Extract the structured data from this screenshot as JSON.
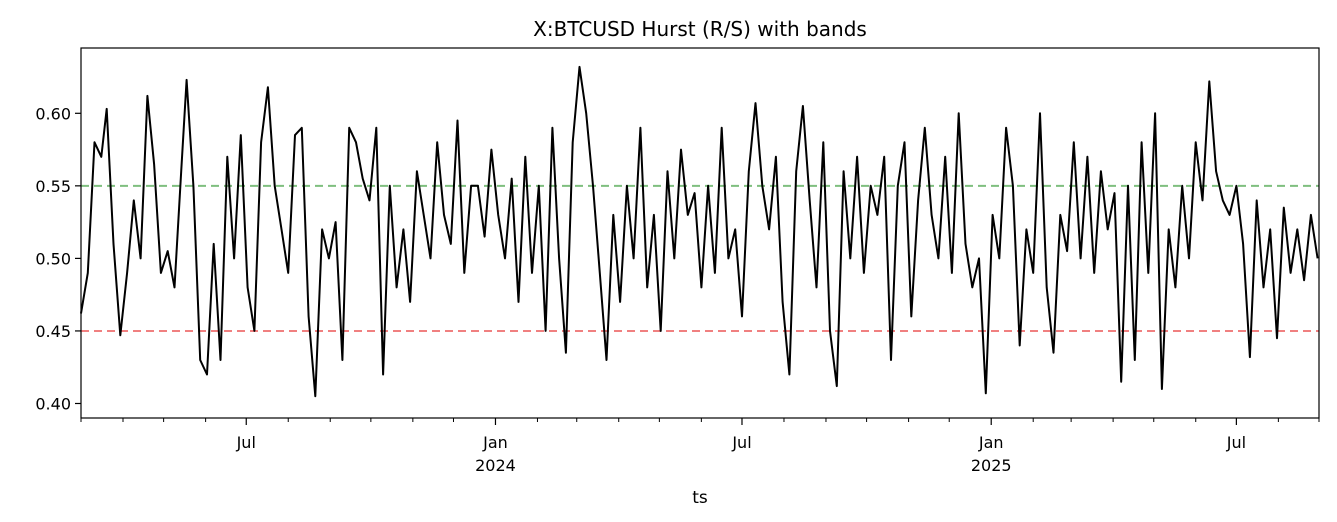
{
  "chart_data": {
    "type": "line",
    "title": "X:BTCUSD Hurst (R/S) with bands",
    "xlabel": "ts",
    "ylabel": "",
    "ylim": [
      0.39,
      0.645
    ],
    "xlim": [
      "2023-03-01",
      "2025-08-31"
    ],
    "grid": false,
    "legend": "none",
    "y_ticks": [
      "0.40",
      "0.45",
      "0.50",
      "0.55",
      "0.60"
    ],
    "x_major_ticks": [
      {
        "date": "2023-07-01",
        "label": "Jul",
        "label2": ""
      },
      {
        "date": "2024-01-01",
        "label": "Jan",
        "label2": "2024"
      },
      {
        "date": "2024-07-01",
        "label": "Jul",
        "label2": ""
      },
      {
        "date": "2025-01-01",
        "label": "Jan",
        "label2": "2025"
      },
      {
        "date": "2025-07-01",
        "label": "Jul",
        "label2": ""
      }
    ],
    "bands": [
      {
        "value": 0.55,
        "color": "#7fbf7f",
        "style": "dashed"
      },
      {
        "value": 0.45,
        "color": "#f08080",
        "style": "dashed"
      }
    ],
    "series": [
      {
        "color": "#000000",
        "points": [
          [
            "2023-03-01",
            0.462
          ],
          [
            "2023-03-06",
            0.49
          ],
          [
            "2023-03-11",
            0.58
          ],
          [
            "2023-03-16",
            0.57
          ],
          [
            "2023-03-20",
            0.603
          ],
          [
            "2023-03-25",
            0.51
          ],
          [
            "2023-03-30",
            0.447
          ],
          [
            "2023-04-04",
            0.49
          ],
          [
            "2023-04-09",
            0.54
          ],
          [
            "2023-04-14",
            0.5
          ],
          [
            "2023-04-19",
            0.612
          ],
          [
            "2023-04-24",
            0.565
          ],
          [
            "2023-04-29",
            0.49
          ],
          [
            "2023-05-04",
            0.505
          ],
          [
            "2023-05-09",
            0.48
          ],
          [
            "2023-05-14",
            0.56
          ],
          [
            "2023-05-18",
            0.623
          ],
          [
            "2023-05-23",
            0.55
          ],
          [
            "2023-05-28",
            0.43
          ],
          [
            "2023-06-02",
            0.42
          ],
          [
            "2023-06-07",
            0.51
          ],
          [
            "2023-06-12",
            0.43
          ],
          [
            "2023-06-17",
            0.57
          ],
          [
            "2023-06-22",
            0.5
          ],
          [
            "2023-06-27",
            0.585
          ],
          [
            "2023-07-02",
            0.48
          ],
          [
            "2023-07-07",
            0.45
          ],
          [
            "2023-07-12",
            0.58
          ],
          [
            "2023-07-17",
            0.618
          ],
          [
            "2023-07-22",
            0.55
          ],
          [
            "2023-07-27",
            0.52
          ],
          [
            "2023-08-01",
            0.49
          ],
          [
            "2023-08-06",
            0.585
          ],
          [
            "2023-08-11",
            0.59
          ],
          [
            "2023-08-16",
            0.46
          ],
          [
            "2023-08-21",
            0.405
          ],
          [
            "2023-08-26",
            0.52
          ],
          [
            "2023-08-31",
            0.5
          ],
          [
            "2023-09-05",
            0.525
          ],
          [
            "2023-09-10",
            0.43
          ],
          [
            "2023-09-15",
            0.59
          ],
          [
            "2023-09-20",
            0.58
          ],
          [
            "2023-09-25",
            0.555
          ],
          [
            "2023-09-30",
            0.54
          ],
          [
            "2023-10-05",
            0.59
          ],
          [
            "2023-10-10",
            0.42
          ],
          [
            "2023-10-15",
            0.55
          ],
          [
            "2023-10-20",
            0.48
          ],
          [
            "2023-10-25",
            0.52
          ],
          [
            "2023-10-30",
            0.47
          ],
          [
            "2023-11-04",
            0.56
          ],
          [
            "2023-11-09",
            0.53
          ],
          [
            "2023-11-14",
            0.5
          ],
          [
            "2023-11-19",
            0.58
          ],
          [
            "2023-11-24",
            0.53
          ],
          [
            "2023-11-29",
            0.51
          ],
          [
            "2023-12-04",
            0.595
          ],
          [
            "2023-12-09",
            0.49
          ],
          [
            "2023-12-14",
            0.55
          ],
          [
            "2023-12-19",
            0.55
          ],
          [
            "2023-12-24",
            0.515
          ],
          [
            "2023-12-29",
            0.575
          ],
          [
            "2024-01-03",
            0.53
          ],
          [
            "2024-01-08",
            0.5
          ],
          [
            "2024-01-13",
            0.555
          ],
          [
            "2024-01-18",
            0.47
          ],
          [
            "2024-01-23",
            0.57
          ],
          [
            "2024-01-28",
            0.49
          ],
          [
            "2024-02-02",
            0.55
          ],
          [
            "2024-02-07",
            0.45
          ],
          [
            "2024-02-12",
            0.59
          ],
          [
            "2024-02-17",
            0.5
          ],
          [
            "2024-02-22",
            0.435
          ],
          [
            "2024-02-27",
            0.58
          ],
          [
            "2024-03-03",
            0.632
          ],
          [
            "2024-03-08",
            0.6
          ],
          [
            "2024-03-13",
            0.55
          ],
          [
            "2024-03-18",
            0.49
          ],
          [
            "2024-03-23",
            0.43
          ],
          [
            "2024-03-28",
            0.53
          ],
          [
            "2024-04-02",
            0.47
          ],
          [
            "2024-04-07",
            0.55
          ],
          [
            "2024-04-12",
            0.5
          ],
          [
            "2024-04-17",
            0.59
          ],
          [
            "2024-04-22",
            0.48
          ],
          [
            "2024-04-27",
            0.53
          ],
          [
            "2024-05-02",
            0.45
          ],
          [
            "2024-05-07",
            0.56
          ],
          [
            "2024-05-12",
            0.5
          ],
          [
            "2024-05-17",
            0.575
          ],
          [
            "2024-05-22",
            0.53
          ],
          [
            "2024-05-27",
            0.545
          ],
          [
            "2024-06-01",
            0.48
          ],
          [
            "2024-06-06",
            0.55
          ],
          [
            "2024-06-11",
            0.49
          ],
          [
            "2024-06-16",
            0.59
          ],
          [
            "2024-06-21",
            0.5
          ],
          [
            "2024-06-26",
            0.52
          ],
          [
            "2024-07-01",
            0.46
          ],
          [
            "2024-07-06",
            0.56
          ],
          [
            "2024-07-11",
            0.607
          ],
          [
            "2024-07-16",
            0.55
          ],
          [
            "2024-07-21",
            0.52
          ],
          [
            "2024-07-26",
            0.57
          ],
          [
            "2024-07-31",
            0.47
          ],
          [
            "2024-08-05",
            0.42
          ],
          [
            "2024-08-10",
            0.56
          ],
          [
            "2024-08-15",
            0.605
          ],
          [
            "2024-08-20",
            0.54
          ],
          [
            "2024-08-25",
            0.48
          ],
          [
            "2024-08-30",
            0.58
          ],
          [
            "2024-09-04",
            0.45
          ],
          [
            "2024-09-09",
            0.412
          ],
          [
            "2024-09-14",
            0.56
          ],
          [
            "2024-09-19",
            0.5
          ],
          [
            "2024-09-24",
            0.57
          ],
          [
            "2024-09-29",
            0.49
          ],
          [
            "2024-10-04",
            0.55
          ],
          [
            "2024-10-09",
            0.53
          ],
          [
            "2024-10-14",
            0.57
          ],
          [
            "2024-10-19",
            0.43
          ],
          [
            "2024-10-24",
            0.55
          ],
          [
            "2024-10-29",
            0.58
          ],
          [
            "2024-11-03",
            0.46
          ],
          [
            "2024-11-08",
            0.54
          ],
          [
            "2024-11-13",
            0.59
          ],
          [
            "2024-11-18",
            0.53
          ],
          [
            "2024-11-23",
            0.5
          ],
          [
            "2024-11-28",
            0.57
          ],
          [
            "2024-12-03",
            0.49
          ],
          [
            "2024-12-08",
            0.6
          ],
          [
            "2024-12-13",
            0.51
          ],
          [
            "2024-12-18",
            0.48
          ],
          [
            "2024-12-23",
            0.5
          ],
          [
            "2024-12-28",
            0.407
          ],
          [
            "2025-01-02",
            0.53
          ],
          [
            "2025-01-07",
            0.5
          ],
          [
            "2025-01-12",
            0.59
          ],
          [
            "2025-01-17",
            0.55
          ],
          [
            "2025-01-22",
            0.44
          ],
          [
            "2025-01-27",
            0.52
          ],
          [
            "2025-02-01",
            0.49
          ],
          [
            "2025-02-06",
            0.6
          ],
          [
            "2025-02-11",
            0.48
          ],
          [
            "2025-02-16",
            0.435
          ],
          [
            "2025-02-21",
            0.53
          ],
          [
            "2025-02-26",
            0.505
          ],
          [
            "2025-03-03",
            0.58
          ],
          [
            "2025-03-08",
            0.5
          ],
          [
            "2025-03-13",
            0.57
          ],
          [
            "2025-03-18",
            0.49
          ],
          [
            "2025-03-23",
            0.56
          ],
          [
            "2025-03-28",
            0.52
          ],
          [
            "2025-04-02",
            0.545
          ],
          [
            "2025-04-07",
            0.415
          ],
          [
            "2025-04-12",
            0.55
          ],
          [
            "2025-04-17",
            0.43
          ],
          [
            "2025-04-22",
            0.58
          ],
          [
            "2025-04-27",
            0.49
          ],
          [
            "2025-05-02",
            0.6
          ],
          [
            "2025-05-07",
            0.41
          ],
          [
            "2025-05-12",
            0.52
          ],
          [
            "2025-05-17",
            0.48
          ],
          [
            "2025-05-22",
            0.55
          ],
          [
            "2025-05-27",
            0.5
          ],
          [
            "2025-06-01",
            0.58
          ],
          [
            "2025-06-06",
            0.54
          ],
          [
            "2025-06-11",
            0.622
          ],
          [
            "2025-06-16",
            0.56
          ],
          [
            "2025-06-21",
            0.54
          ],
          [
            "2025-06-26",
            0.53
          ],
          [
            "2025-07-01",
            0.55
          ],
          [
            "2025-07-06",
            0.51
          ],
          [
            "2025-07-11",
            0.432
          ],
          [
            "2025-07-16",
            0.54
          ],
          [
            "2025-07-21",
            0.48
          ],
          [
            "2025-07-26",
            0.52
          ],
          [
            "2025-07-31",
            0.445
          ],
          [
            "2025-08-05",
            0.535
          ],
          [
            "2025-08-10",
            0.49
          ],
          [
            "2025-08-15",
            0.52
          ],
          [
            "2025-08-20",
            0.485
          ],
          [
            "2025-08-25",
            0.53
          ],
          [
            "2025-08-30",
            0.5
          ]
        ]
      }
    ]
  }
}
